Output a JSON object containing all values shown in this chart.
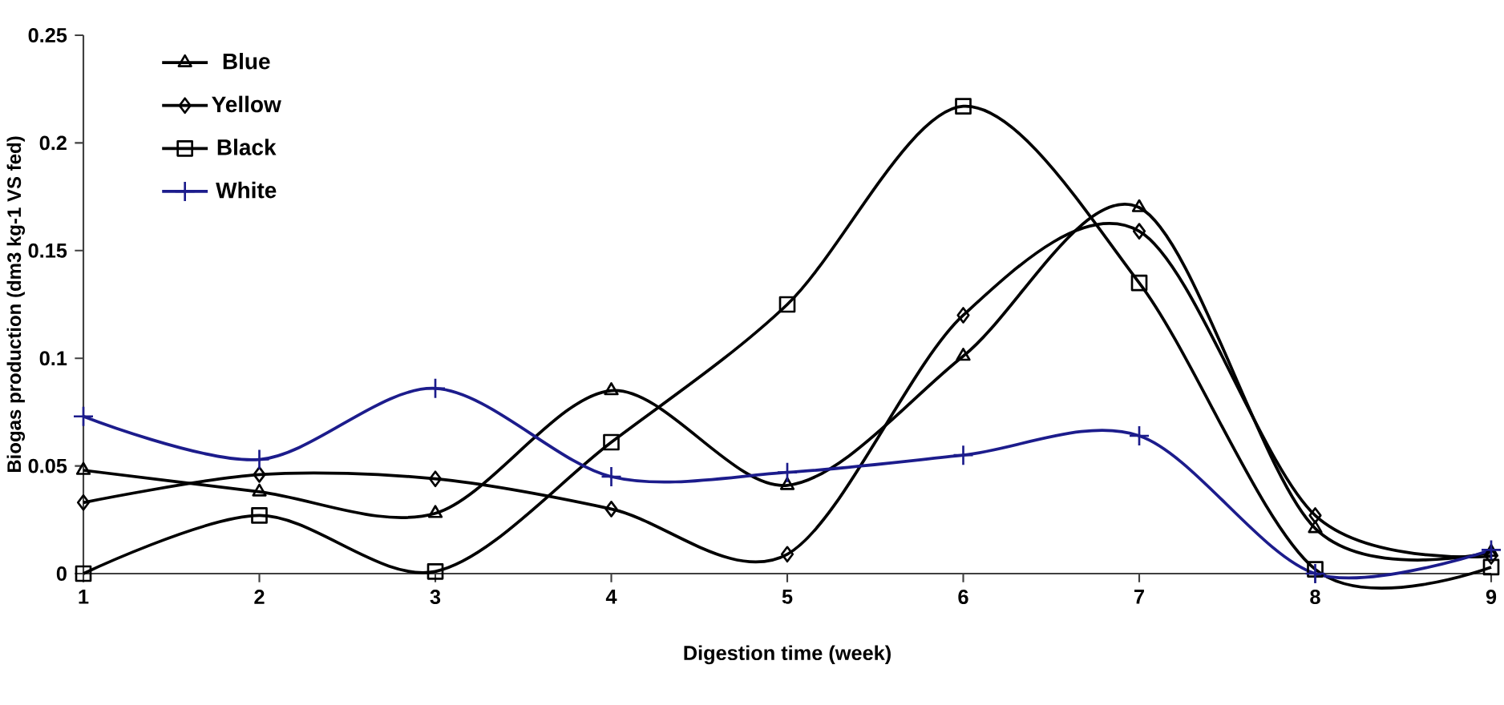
{
  "chart_data": {
    "type": "line",
    "xlabel": "Digestion time (week)",
    "ylabel": "Biogas production (dm3 kg-1 VS fed)",
    "x": [
      1,
      2,
      3,
      4,
      5,
      6,
      7,
      8,
      9
    ],
    "xlim": [
      1,
      9
    ],
    "xticks": [
      1,
      2,
      3,
      4,
      5,
      6,
      7,
      8,
      9
    ],
    "ylim": [
      0,
      0.25
    ],
    "yticks": [
      0,
      0.05,
      0.1,
      0.15,
      0.2,
      0.25
    ],
    "grid": false,
    "legend": "top left",
    "line_style": "solid",
    "series": [
      {
        "name": "Blue",
        "color": "#000000",
        "marker": "triangle",
        "values": [
          0.048,
          0.038,
          0.028,
          0.085,
          0.041,
          0.101,
          0.17,
          0.021,
          0.01
        ]
      },
      {
        "name": "Yellow",
        "color": "#000000",
        "marker": "diamond",
        "values": [
          0.033,
          0.046,
          0.044,
          0.03,
          0.009,
          0.12,
          0.159,
          0.027,
          0.008
        ]
      },
      {
        "name": "Black",
        "color": "#000000",
        "marker": "square",
        "values": [
          0.0,
          0.027,
          0.001,
          0.061,
          0.125,
          0.217,
          0.135,
          0.002,
          0.003
        ]
      },
      {
        "name": "White",
        "color": "#1c1c8c",
        "marker": "cross",
        "values": [
          0.073,
          0.053,
          0.086,
          0.045,
          0.047,
          0.055,
          0.064,
          0.0,
          0.011
        ]
      }
    ]
  }
}
